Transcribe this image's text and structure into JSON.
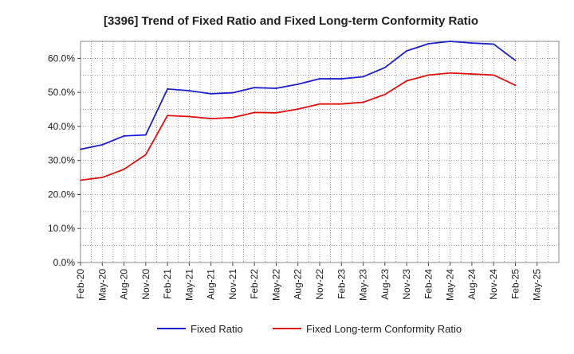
{
  "chart_data": {
    "type": "line",
    "title": "[3396]  Trend of Fixed Ratio and Fixed Long-term Conformity Ratio",
    "xlabel": "",
    "ylabel": "",
    "categories": [
      "Feb-20",
      "May-20",
      "Aug-20",
      "Nov-20",
      "Feb-21",
      "May-21",
      "Aug-21",
      "Nov-21",
      "Feb-22",
      "May-22",
      "Aug-22",
      "Nov-22",
      "Feb-23",
      "May-23",
      "Aug-23",
      "Nov-23",
      "Feb-24",
      "May-24",
      "Aug-24",
      "Nov-24",
      "Feb-25",
      "May-25"
    ],
    "ylim": [
      0,
      65
    ],
    "yticks": [
      0,
      10,
      20,
      30,
      40,
      50,
      60
    ],
    "ytick_labels": [
      "0.0%",
      "10.0%",
      "20.0%",
      "30.0%",
      "40.0%",
      "50.0%",
      "60.0%"
    ],
    "grid": true,
    "legend_position": "bottom",
    "series": [
      {
        "name": "Fixed Ratio",
        "color": "#1f1fcc",
        "values": [
          33.3,
          34.6,
          37.2,
          37.5,
          51.0,
          50.5,
          49.6,
          49.9,
          51.4,
          51.2,
          52.4,
          54.0,
          54.0,
          54.6,
          57.3,
          62.2,
          64.3,
          65.0,
          64.5,
          64.2,
          59.4,
          null
        ]
      },
      {
        "name": "Fixed Long-term Conformity Ratio",
        "color": "#e01010",
        "values": [
          24.2,
          25.0,
          27.4,
          31.7,
          43.2,
          42.9,
          42.3,
          42.6,
          44.1,
          44.0,
          45.1,
          46.6,
          46.6,
          47.1,
          49.4,
          53.4,
          55.1,
          55.7,
          55.4,
          55.1,
          52.1,
          null
        ]
      }
    ]
  }
}
